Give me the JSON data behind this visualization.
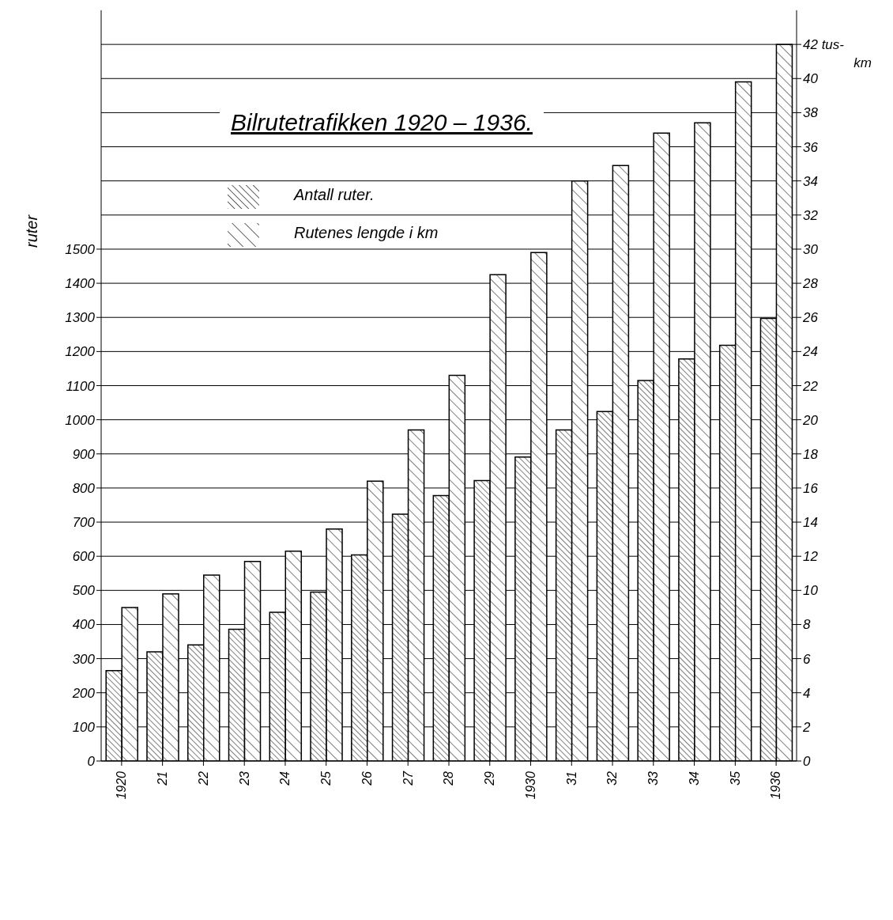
{
  "chart_data": {
    "type": "bar",
    "title": "Bilrutetrafikken 1920 – 1936.",
    "ylabel": "ruter",
    "y2label": "km",
    "categories": [
      "1920",
      "21",
      "22",
      "23",
      "24",
      "25",
      "26",
      "27",
      "28",
      "29",
      "1930",
      "31",
      "32",
      "33",
      "34",
      "35",
      "1936"
    ],
    "series": [
      {
        "name": "Antall ruter.",
        "color": "#000000",
        "values": [
          265,
          320,
          340,
          386,
          436,
          495,
          604,
          723,
          778,
          822,
          891,
          970,
          1024,
          1115,
          1178,
          1218,
          1297
        ]
      },
      {
        "name": "Rutenes lengde i km",
        "color": "#000000",
        "axis": "y2",
        "values": [
          9.0,
          9.8,
          10.9,
          11.7,
          12.3,
          13.6,
          16.4,
          19.4,
          22.6,
          28.5,
          29.8,
          34.0,
          34.9,
          36.8,
          37.4,
          39.8,
          42.0
        ]
      }
    ],
    "ylim": [
      0,
      2200
    ],
    "yticks": [
      0,
      100,
      200,
      300,
      400,
      500,
      600,
      700,
      800,
      900,
      1000,
      1100,
      1200,
      1300,
      1400,
      1500
    ],
    "y2lim": [
      0,
      44
    ],
    "y2ticks": [
      0,
      2,
      4,
      6,
      8,
      10,
      12,
      14,
      16,
      18,
      20,
      22,
      24,
      26,
      28,
      30,
      32,
      34,
      36,
      38,
      40,
      {
        "value": 42,
        "label": "42 tus-"
      }
    ],
    "grid": "y",
    "legend": "top left"
  }
}
